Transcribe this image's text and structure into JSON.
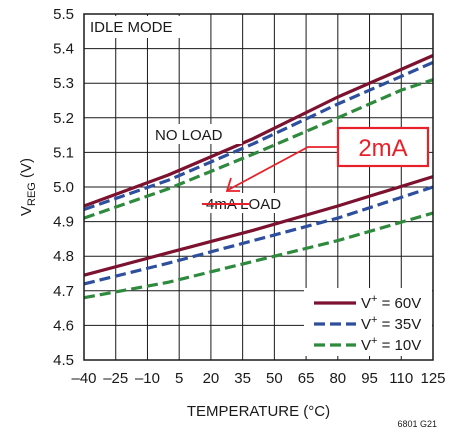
{
  "chart_data": {
    "type": "line",
    "xlabel": "TEMPERATURE (°C)",
    "ylabel_main": "V",
    "ylabel_sub": "REG",
    "ylabel_unit": " (V)",
    "xlim": [
      -40,
      125
    ],
    "ylim": [
      4.5,
      5.5
    ],
    "x_ticks": [
      -40,
      -25,
      -10,
      5,
      20,
      35,
      50,
      65,
      80,
      95,
      110,
      125
    ],
    "x_tick_labels": [
      "–40",
      "–25",
      "–10",
      "5",
      "20",
      "35",
      "50",
      "65",
      "80",
      "95",
      "110",
      "125"
    ],
    "y_ticks": [
      4.5,
      4.6,
      4.7,
      4.8,
      4.9,
      5.0,
      5.1,
      5.2,
      5.3,
      5.4,
      5.5
    ],
    "y_tick_labels": [
      "4.5",
      "4.6",
      "4.7",
      "4.8",
      "4.9",
      "5.0",
      "5.1",
      "5.2",
      "5.3",
      "5.4",
      "5.5"
    ],
    "grid": true,
    "annotations": {
      "mode": "IDLE MODE",
      "no_load": "NO LOAD",
      "load": "4mA LOAD",
      "callout": "2mA",
      "figure_id": "6801 G21"
    },
    "legend": {
      "position": "bottom-right",
      "entries": [
        {
          "prefix": "V",
          "sup": "+",
          "suffix": " = 60V",
          "color": "#7d1230",
          "dash": "solid"
        },
        {
          "prefix": "V",
          "sup": "+",
          "suffix": " = 35V",
          "color": "#2e4f9e",
          "dash": "dashed"
        },
        {
          "prefix": "V",
          "sup": "+",
          "suffix": " = 10V",
          "color": "#2e8a3c",
          "dash": "dashed"
        }
      ]
    },
    "series": [
      {
        "group": "no-load",
        "vplus": "60V",
        "color": "#7d1230",
        "dash": "solid",
        "x": [
          -40,
          0,
          40,
          80,
          110,
          125
        ],
        "y": [
          4.945,
          5.035,
          5.14,
          5.26,
          5.34,
          5.38
        ]
      },
      {
        "group": "no-load",
        "vplus": "35V",
        "color": "#2e4f9e",
        "dash": "dashed",
        "x": [
          -40,
          0,
          40,
          80,
          110,
          125
        ],
        "y": [
          4.935,
          5.02,
          5.125,
          5.24,
          5.32,
          5.36
        ]
      },
      {
        "group": "no-load",
        "vplus": "10V",
        "color": "#2e8a3c",
        "dash": "dashed",
        "x": [
          -40,
          0,
          40,
          80,
          110,
          125
        ],
        "y": [
          4.91,
          4.995,
          5.095,
          5.2,
          5.28,
          5.31
        ]
      },
      {
        "group": "4ma-load",
        "vplus": "60V",
        "color": "#7d1230",
        "dash": "solid",
        "x": [
          -40,
          0,
          40,
          80,
          125
        ],
        "y": [
          4.745,
          4.81,
          4.875,
          4.945,
          5.03
        ]
      },
      {
        "group": "4ma-load",
        "vplus": "35V",
        "color": "#2e4f9e",
        "dash": "dashed",
        "x": [
          -40,
          0,
          40,
          80,
          125
        ],
        "y": [
          4.72,
          4.78,
          4.845,
          4.91,
          5.0
        ]
      },
      {
        "group": "4ma-load",
        "vplus": "10V",
        "color": "#2e8a3c",
        "dash": "dashed",
        "x": [
          -40,
          0,
          40,
          80,
          125
        ],
        "y": [
          4.68,
          4.725,
          4.785,
          4.845,
          4.925
        ]
      }
    ],
    "callout_color": "#e8202a"
  }
}
